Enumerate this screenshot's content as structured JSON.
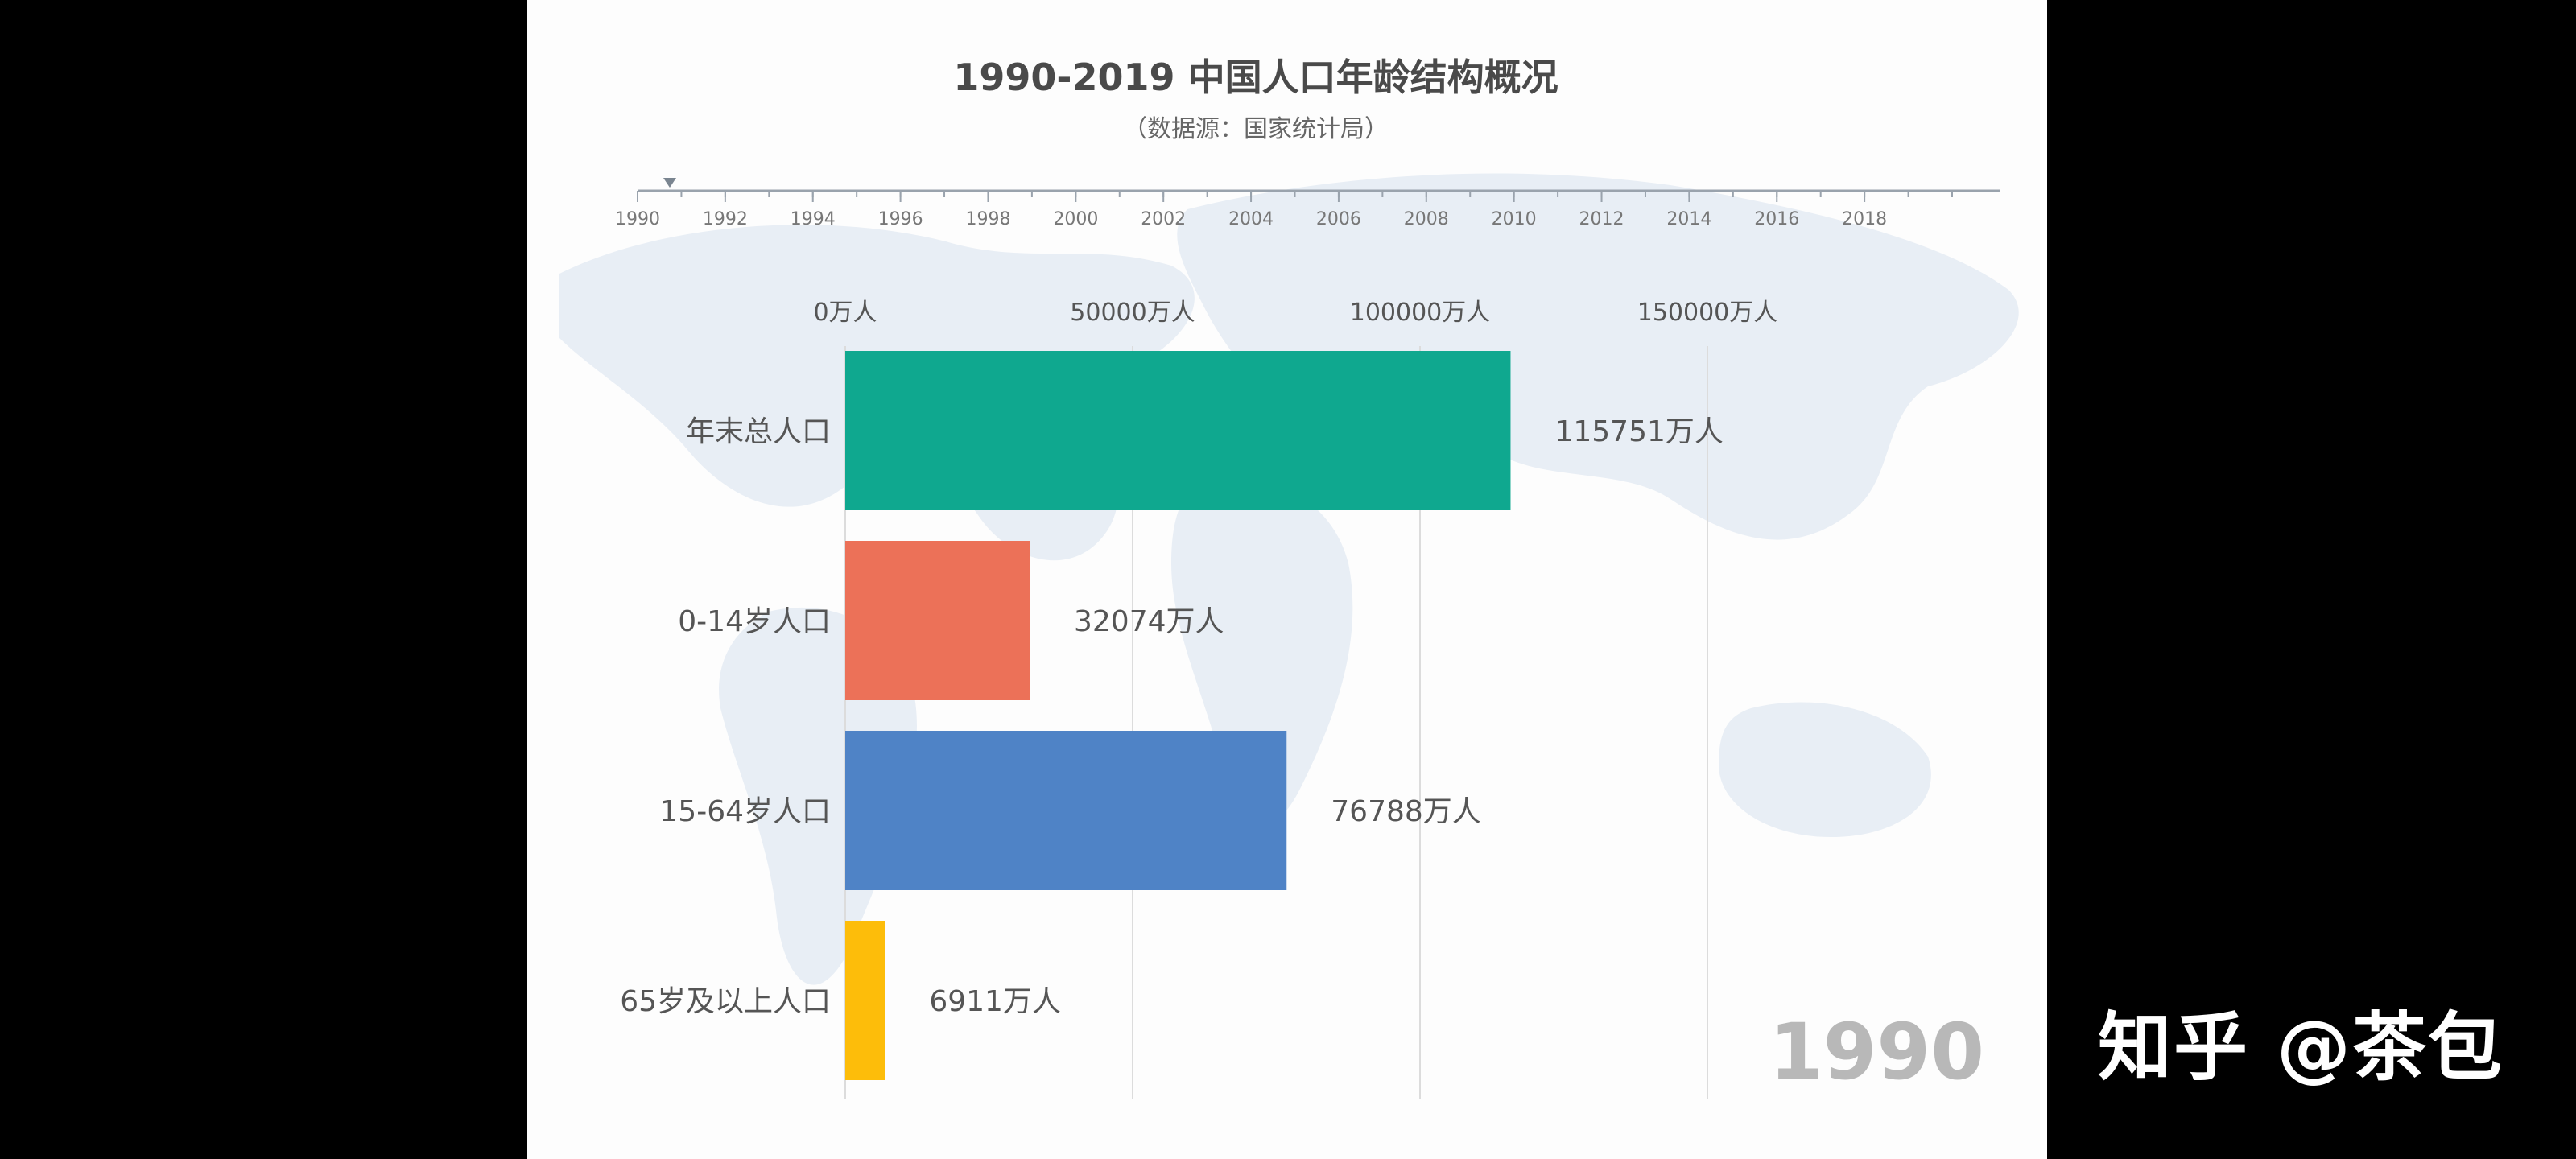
{
  "chart_data": {
    "type": "bar",
    "orientation": "horizontal",
    "title": "1990-2019 中国人口年龄结构概况",
    "subtitle": "（数据源：国家统计局）",
    "timeline": {
      "ticks": [
        "1990",
        "1992",
        "1994",
        "1996",
        "1998",
        "2000",
        "2002",
        "2004",
        "2006",
        "2008",
        "2010",
        "2012",
        "2014",
        "2016",
        "2018"
      ],
      "current": "1990",
      "range": [
        1990,
        2020
      ]
    },
    "x_unit": "万人",
    "x_ticks": [
      0,
      50000,
      100000,
      150000
    ],
    "x_tick_labels": [
      "0万人",
      "50000万人",
      "100000万人",
      "150000万人"
    ],
    "xlim": [
      0,
      200000
    ],
    "grid": true,
    "categories": [
      "年末总人口",
      "0-14岁人口",
      "15-64岁人口",
      "65岁及以上人口"
    ],
    "values": [
      115751,
      32074,
      76788,
      6911
    ],
    "value_labels": [
      "115751万人",
      "32074万人",
      "76788万人",
      "6911万人"
    ],
    "colors": [
      "#0fa88f",
      "#ec7158",
      "#4f83c6",
      "#fdbd0a"
    ],
    "year_label": "1990"
  },
  "watermark": "知乎 @茶包"
}
